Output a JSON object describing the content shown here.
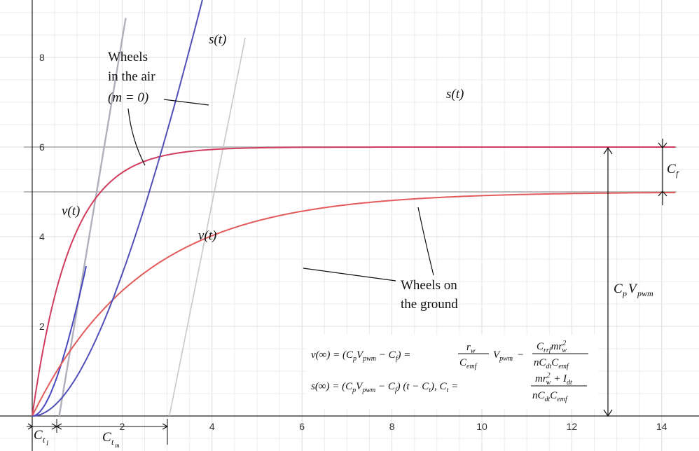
{
  "chart_data": {
    "type": "line",
    "title": "",
    "xlabel": "",
    "ylabel": "",
    "xlim": [
      -0.2,
      14.4
    ],
    "ylim": [
      -0.4,
      9.0
    ],
    "xticks": [
      2,
      4,
      6,
      8,
      10,
      12,
      14
    ],
    "yticks": [
      2,
      4,
      6,
      8
    ],
    "grid": true,
    "params": {
      "v_air": 6,
      "tau_air": 0.85,
      "v_ground": 5,
      "tau_ground": 2.45
    },
    "series": [
      {
        "name": "v(t)",
        "group": "air",
        "color": "#d23c5c",
        "width": 2.0
      },
      {
        "name": "s(t)",
        "group": "air",
        "color": "#b0b0bc",
        "width": 2.4
      },
      {
        "name": "v(t)",
        "group": "ground",
        "color": "#e25a5a",
        "width": 2.0
      },
      {
        "name": "s(t)",
        "group": "ground",
        "color": "#5050b8",
        "width": 2.0
      }
    ],
    "guides": [
      {
        "y": 6,
        "color": "#bbbbbb"
      },
      {
        "y": 5,
        "color": "#bbbbbb"
      }
    ],
    "asymptote_air": {
      "slope": 6,
      "x_intercept": 0.6,
      "color": "#b0b0bc"
    },
    "asymptote_ground": {
      "slope": 5,
      "x_intercept": 3.05,
      "color": "#c8c8cc"
    },
    "labels": {
      "v_air": "v(t)",
      "s_air": "s(t)",
      "v_ground": "v(t)",
      "s_ground": "s(t)",
      "air_note": [
        "Wheels",
        "in the air",
        "(m = 0)"
      ],
      "ground_note": [
        "Wheels on",
        "the ground"
      ],
      "cf": "C",
      "cf_sub": "f",
      "cpv": "C",
      "cpv_sub1": "p",
      "cpv_mid": "V",
      "cpv_sub2": "pwm",
      "cti": "C",
      "cti_sub": "t",
      "cti_subsub": "I",
      "ctm": "C",
      "ctm_sub": "t",
      "ctm_subsub": "m"
    },
    "formulas": {
      "line1_lhs": "v(∞) = (C",
      "line1_rest": "V",
      "line1_tail": " − C",
      "line1_eq": ") =",
      "frac1_num": "r",
      "frac1_den": "C",
      "line1_mid": "V",
      "line1_minus": "−",
      "frac2_num": "C",
      "frac2_den": "nC",
      "line2_lhs": "s(∞) = (C",
      "line2_tail": " (t − C",
      "line2_ct": "),   C",
      "line2_eq": " =",
      "frac3_num": "mr",
      "frac3_den": "nC"
    }
  }
}
